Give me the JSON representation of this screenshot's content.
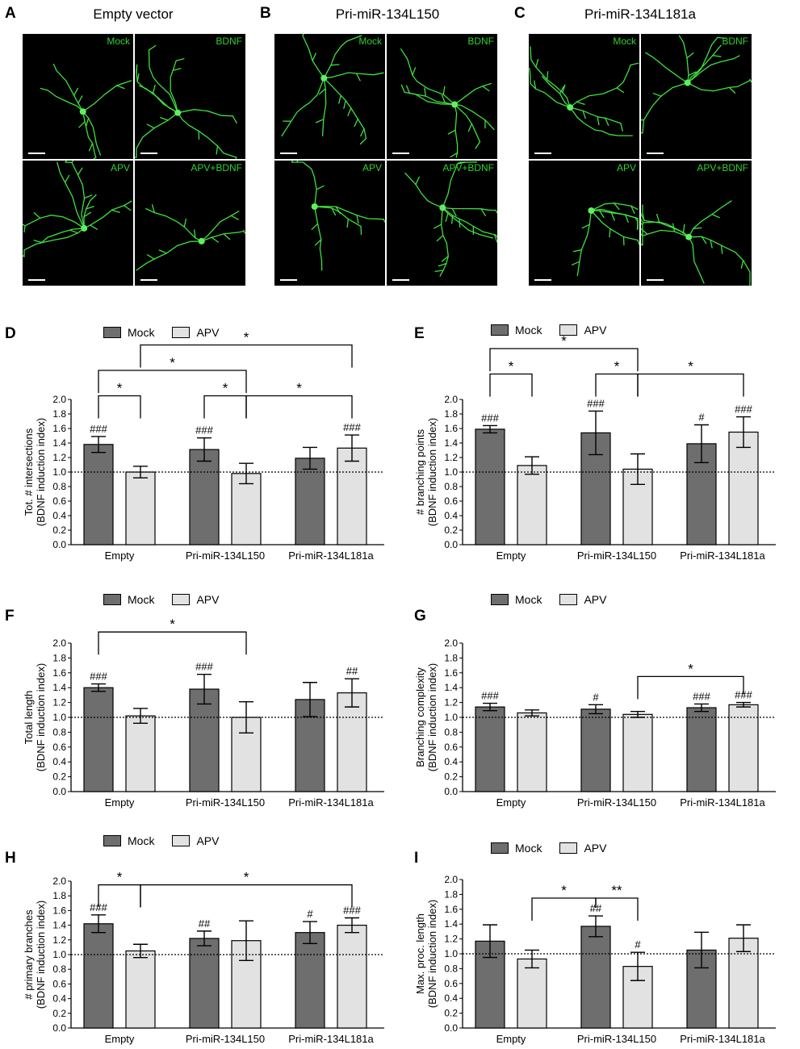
{
  "micrographs": [
    {
      "letter": "A",
      "title": "Empty vector",
      "tiles": [
        "Mock",
        "BDNF",
        "APV",
        "APV+BDNF"
      ]
    },
    {
      "letter": "B",
      "title": "Pri-miR-134L150",
      "tiles": [
        "Mock",
        "BDNF",
        "APV",
        "APV+BDNF"
      ]
    },
    {
      "letter": "C",
      "title": "Pri-miR-134L181a",
      "tiles": [
        "Mock",
        "BDNF",
        "APV",
        "APV+BDNF"
      ]
    }
  ],
  "legend": {
    "mock": "Mock",
    "apv": "APV"
  },
  "colors": {
    "mock": "#6e6e6e",
    "apv": "#e2e2e2",
    "fluorescence": "#2fd02f"
  },
  "chart_data": [
    {
      "panel": "D",
      "type": "bar",
      "ylabel": [
        "Tot. # intersections",
        "(BDNF induction index)"
      ],
      "categories": [
        "Empty",
        "Pri-miR-134L150",
        "Pri-miR-134L181a"
      ],
      "series": [
        {
          "name": "Mock",
          "values": [
            1.38,
            1.31,
            1.19
          ],
          "errors": [
            0.11,
            0.16,
            0.15
          ]
        },
        {
          "name": "APV",
          "values": [
            1.0,
            0.98,
            1.33
          ],
          "errors": [
            0.08,
            0.14,
            0.18
          ]
        }
      ],
      "marks": [
        [
          "###",
          ""
        ],
        [
          "###",
          ""
        ],
        [
          "",
          "###"
        ]
      ],
      "ylim": [
        0,
        2
      ],
      "ticks": [
        "0.0",
        "0.2",
        "0.4",
        "0.6",
        "0.8",
        "1.0",
        "1.2",
        "1.4",
        "1.6",
        "1.8",
        "2.0"
      ],
      "reference_line": 1.0,
      "brackets": [
        {
          "from": [
            0,
            0
          ],
          "to": [
            0,
            1
          ],
          "level": 2.05,
          "label": "*"
        },
        {
          "from": [
            1,
            0
          ],
          "to": [
            1,
            1
          ],
          "level": 2.05,
          "label": "*"
        },
        {
          "from": [
            1,
            1
          ],
          "to": [
            2,
            1
          ],
          "level": 2.05,
          "label": "*"
        },
        {
          "from": [
            0,
            0
          ],
          "to": [
            1,
            1
          ],
          "level": 2.4,
          "label": "*"
        },
        {
          "from": [
            0,
            1
          ],
          "to": [
            2,
            1
          ],
          "level": 2.75,
          "label": "*"
        }
      ]
    },
    {
      "panel": "E",
      "type": "bar",
      "ylabel": [
        "# branching points",
        "(BDNF induction index)"
      ],
      "categories": [
        "Empty",
        "Pri-miR-134L150",
        "Pri-miR-134L181a"
      ],
      "series": [
        {
          "name": "Mock",
          "values": [
            1.59,
            1.54,
            1.39
          ],
          "errors": [
            0.05,
            0.3,
            0.26
          ]
        },
        {
          "name": "APV",
          "values": [
            1.09,
            1.04,
            1.55
          ],
          "errors": [
            0.12,
            0.21,
            0.21
          ]
        }
      ],
      "marks": [
        [
          "###",
          ""
        ],
        [
          "###",
          ""
        ],
        [
          "#",
          "###"
        ]
      ],
      "ylim": [
        0,
        2
      ],
      "ticks": [
        "0.0",
        "0.2",
        "0.4",
        "0.6",
        "0.8",
        "1.0",
        "1.2",
        "1.4",
        "1.6",
        "1.8",
        "2.0"
      ],
      "reference_line": 1.0,
      "brackets": [
        {
          "from": [
            0,
            0
          ],
          "to": [
            0,
            1
          ],
          "level": 2.35,
          "label": "*"
        },
        {
          "from": [
            1,
            0
          ],
          "to": [
            1,
            1
          ],
          "level": 2.35,
          "label": "*"
        },
        {
          "from": [
            1,
            1
          ],
          "to": [
            2,
            1
          ],
          "level": 2.35,
          "label": "*"
        },
        {
          "from": [
            0,
            0
          ],
          "to": [
            1,
            1
          ],
          "level": 2.7,
          "label": "*"
        }
      ]
    },
    {
      "panel": "F",
      "type": "bar",
      "ylabel": [
        "Total length",
        "(BDNF induction index)"
      ],
      "categories": [
        "Empty",
        "Pri-miR-134L150",
        "Pri-miR-134L181a"
      ],
      "series": [
        {
          "name": "Mock",
          "values": [
            1.4,
            1.38,
            1.24
          ],
          "errors": [
            0.05,
            0.2,
            0.23
          ]
        },
        {
          "name": "APV",
          "values": [
            1.02,
            1.0,
            1.33
          ],
          "errors": [
            0.1,
            0.21,
            0.19
          ]
        }
      ],
      "marks": [
        [
          "###",
          ""
        ],
        [
          "###",
          ""
        ],
        [
          "",
          "##"
        ]
      ],
      "ylim": [
        0,
        2
      ],
      "ticks": [
        "0.0",
        "0.2",
        "0.4",
        "0.6",
        "0.8",
        "1.0",
        "1.2",
        "1.4",
        "1.6",
        "1.8",
        "2.0"
      ],
      "reference_line": 1.0,
      "brackets": [
        {
          "from": [
            0,
            0
          ],
          "to": [
            1,
            1
          ],
          "level": 2.15,
          "label": "*"
        }
      ]
    },
    {
      "panel": "G",
      "type": "bar",
      "ylabel": [
        "Branching complexity",
        "(BDNF induction index)"
      ],
      "categories": [
        "Empty",
        "Pri-miR-134L150",
        "Pri-miR-134L181a"
      ],
      "series": [
        {
          "name": "Mock",
          "values": [
            1.14,
            1.11,
            1.13
          ],
          "errors": [
            0.05,
            0.06,
            0.05
          ]
        },
        {
          "name": "APV",
          "values": [
            1.06,
            1.04,
            1.17
          ],
          "errors": [
            0.04,
            0.04,
            0.03
          ]
        }
      ],
      "marks": [
        [
          "###",
          ""
        ],
        [
          "#",
          ""
        ],
        [
          "###",
          "###"
        ]
      ],
      "ylim": [
        0,
        2
      ],
      "ticks": [
        "0.0",
        "0.2",
        "0.4",
        "0.6",
        "0.8",
        "1.0",
        "1.2",
        "1.4",
        "1.6",
        "1.8",
        "2.0"
      ],
      "reference_line": 1.0,
      "brackets": [
        {
          "from": [
            1,
            1
          ],
          "to": [
            2,
            1
          ],
          "level": 1.55,
          "label": "*"
        }
      ]
    },
    {
      "panel": "H",
      "type": "bar",
      "ylabel": [
        "# primary branches",
        "(BDNF induction index)"
      ],
      "categories": [
        "Empty",
        "Pri-miR-134L150",
        "Pri-miR-134L181a"
      ],
      "series": [
        {
          "name": "Mock",
          "values": [
            1.42,
            1.22,
            1.3
          ],
          "errors": [
            0.12,
            0.1,
            0.15
          ]
        },
        {
          "name": "APV",
          "values": [
            1.05,
            1.19,
            1.4
          ],
          "errors": [
            0.09,
            0.27,
            0.1
          ]
        }
      ],
      "marks": [
        [
          "###",
          ""
        ],
        [
          "##",
          ""
        ],
        [
          "#",
          "###"
        ]
      ],
      "ylim": [
        0,
        2
      ],
      "ticks": [
        "0.0",
        "0.2",
        "0.4",
        "0.6",
        "0.8",
        "1.0",
        "1.2",
        "1.4",
        "1.6",
        "1.8",
        "2.0"
      ],
      "reference_line": 1.0,
      "brackets": [
        {
          "from": [
            0,
            0
          ],
          "to": [
            0,
            1
          ],
          "level": 1.95,
          "label": "*"
        },
        {
          "from": [
            0,
            1
          ],
          "to": [
            2,
            1
          ],
          "level": 1.95,
          "label": "*"
        }
      ]
    },
    {
      "panel": "I",
      "type": "bar",
      "ylabel": [
        "Max. proc. length",
        "(BDNF induction index)"
      ],
      "categories": [
        "Empty",
        "Pri-miR-134L150",
        "Pri-miR-134L181a"
      ],
      "series": [
        {
          "name": "Mock",
          "values": [
            1.17,
            1.37,
            1.05
          ],
          "errors": [
            0.22,
            0.14,
            0.24
          ]
        },
        {
          "name": "APV",
          "values": [
            0.93,
            0.83,
            1.21
          ],
          "errors": [
            0.12,
            0.19,
            0.18
          ]
        }
      ],
      "marks": [
        [
          "",
          ""
        ],
        [
          "##",
          "#"
        ],
        [
          "",
          ""
        ]
      ],
      "ylim": [
        0,
        2
      ],
      "ticks": [
        "0.0",
        "0.2",
        "0.4",
        "0.6",
        "0.8",
        "1.0",
        "1.2",
        "1.4",
        "1.6",
        "1.8",
        "2.0"
      ],
      "reference_line": 1.0,
      "brackets": [
        {
          "from": [
            0,
            1
          ],
          "to": [
            1,
            0
          ],
          "level": 1.75,
          "label": "*"
        },
        {
          "from": [
            1,
            0
          ],
          "to": [
            1,
            1
          ],
          "level": 1.75,
          "label": "**"
        }
      ]
    }
  ]
}
